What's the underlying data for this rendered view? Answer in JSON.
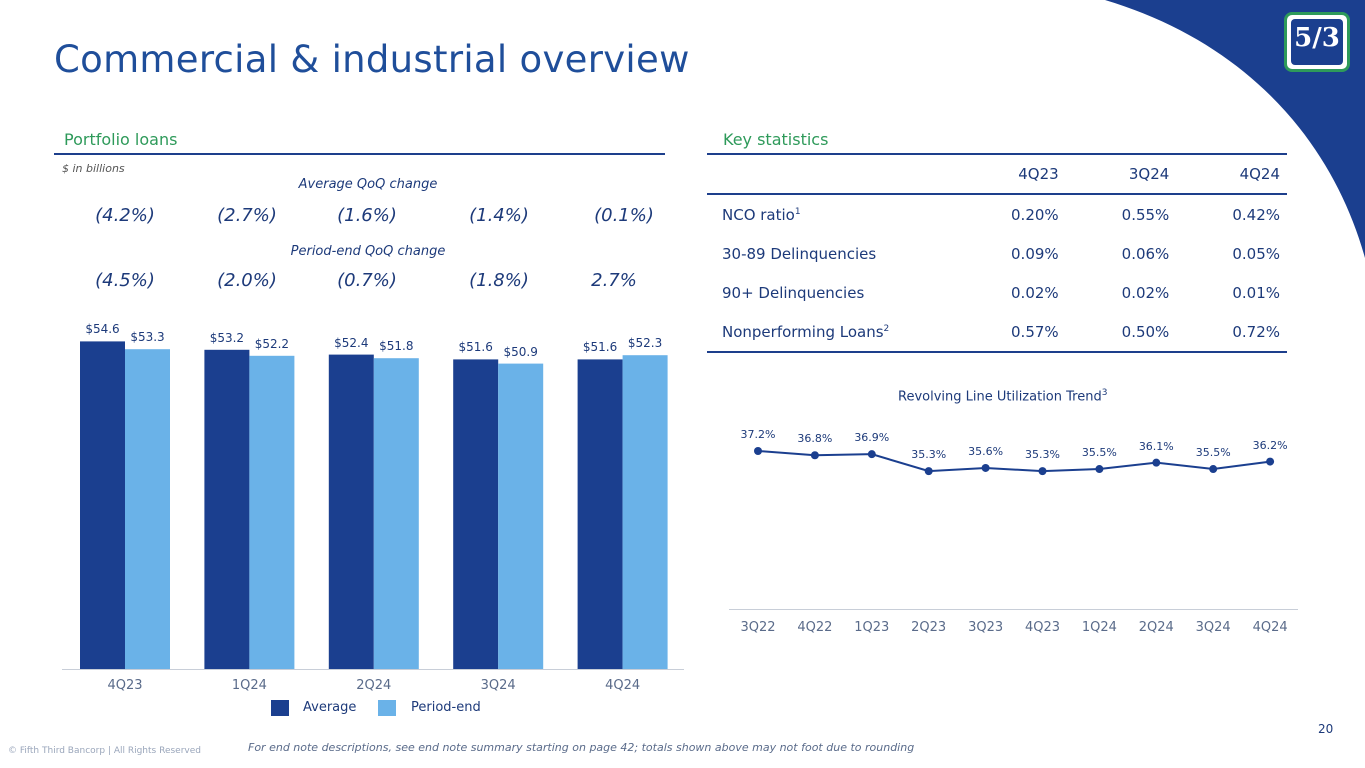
{
  "header": {
    "title": "Commercial & industrial overview",
    "page_number": "20",
    "logo_text": "5/3"
  },
  "portfolio": {
    "section_title": "Portfolio loans",
    "units": "$ in billions",
    "avg_caption": "Average QoQ change",
    "avg_changes": [
      "(4.2%)",
      "(2.7%)",
      "(1.6%)",
      "(1.4%)",
      "(0.1%)"
    ],
    "pe_caption": "Period-end QoQ change",
    "pe_changes": [
      "(4.5%)",
      "(2.0%)",
      "(0.7%)",
      "(1.8%)",
      "2.7%"
    ],
    "legend": [
      "Average",
      "Period-end"
    ],
    "colors": {
      "average": "#1b3f8f",
      "period_end": "#6ab2e8"
    }
  },
  "stats": {
    "section_title": "Key statistics",
    "columns": [
      "4Q23",
      "3Q24",
      "4Q24"
    ],
    "rows": [
      {
        "label": "NCO ratio",
        "sup": "1",
        "values": [
          "0.20%",
          "0.55%",
          "0.42%"
        ]
      },
      {
        "label": "30-89 Delinquencies",
        "sup": "",
        "values": [
          "0.09%",
          "0.06%",
          "0.05%"
        ]
      },
      {
        "label": "90+ Delinquencies",
        "sup": "",
        "values": [
          "0.02%",
          "0.02%",
          "0.01%"
        ]
      },
      {
        "label": "Nonperforming Loans",
        "sup": "2",
        "values": [
          "0.57%",
          "0.50%",
          "0.72%"
        ]
      }
    ]
  },
  "revolver": {
    "title": "Revolving Line Utilization Trend",
    "title_sup": "3"
  },
  "chart_data": [
    {
      "type": "bar",
      "categories": [
        "4Q23",
        "1Q24",
        "2Q24",
        "3Q24",
        "4Q24"
      ],
      "series": [
        {
          "name": "Average",
          "values": [
            54.6,
            53.2,
            52.4,
            51.6,
            51.6
          ],
          "labels": [
            "$54.6",
            "$53.2",
            "$52.4",
            "$51.6",
            "$51.6"
          ]
        },
        {
          "name": "Period-end",
          "values": [
            53.3,
            52.2,
            51.8,
            50.9,
            52.3
          ],
          "labels": [
            "$53.3",
            "$52.2",
            "$51.8",
            "$50.9",
            "$52.3"
          ]
        }
      ],
      "ylim": [
        0,
        60
      ],
      "grid": false,
      "legend": "bottom"
    },
    {
      "type": "line",
      "x": [
        "3Q22",
        "4Q22",
        "1Q23",
        "2Q23",
        "3Q23",
        "4Q23",
        "1Q24",
        "2Q24",
        "3Q24",
        "4Q24"
      ],
      "values": [
        37.2,
        36.8,
        36.9,
        35.3,
        35.6,
        35.3,
        35.5,
        36.1,
        35.5,
        36.2
      ],
      "labels": [
        "37.2%",
        "36.8%",
        "36.9%",
        "35.3%",
        "35.6%",
        "35.3%",
        "35.5%",
        "36.1%",
        "35.5%",
        "36.2%"
      ],
      "title": "Revolving Line Utilization Trend",
      "grid": false
    }
  ],
  "footer": {
    "note": "For end note descriptions, see end note summary starting on page 42; totals shown above may not foot due to rounding",
    "copyright": "© Fifth Third Bancorp | All Rights Reserved"
  }
}
